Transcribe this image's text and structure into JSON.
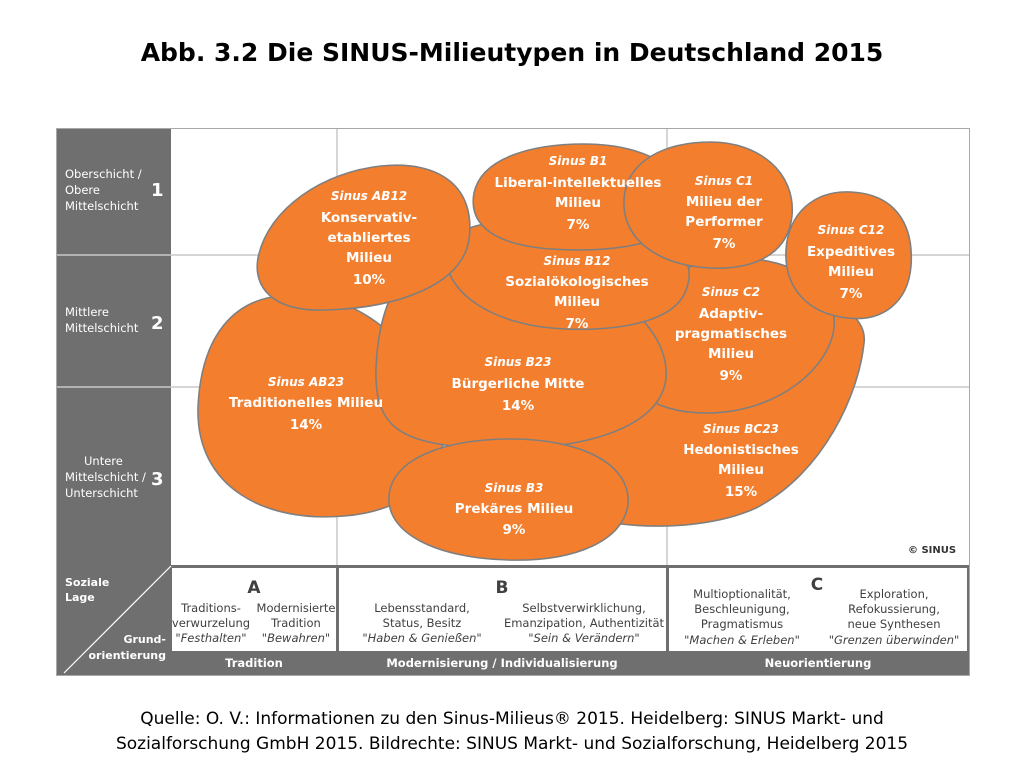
{
  "title": "Abb. 3.2  Die SINUS-Milieutypen in Deutschland 2015",
  "rows": [
    {
      "lines": [
        "Oberschicht /",
        "Obere",
        "Mittelschicht"
      ],
      "num": "1"
    },
    {
      "lines": [
        "Mittlere",
        "Mittelschicht"
      ],
      "num": "2"
    },
    {
      "lines": [
        "Untere",
        "Mittelschicht /",
        "Unterschicht"
      ],
      "num": "3"
    }
  ],
  "milieus": [
    {
      "code": "Sinus AB12",
      "name": [
        "Konservativ-",
        "etabliertes",
        "Milieu"
      ],
      "share": "10%"
    },
    {
      "code": "Sinus B1",
      "name": [
        "Liberal-intellektuelles",
        "Milieu"
      ],
      "share": "7%"
    },
    {
      "code": "Sinus C1",
      "name": [
        "Milieu der",
        "Performer"
      ],
      "share": "7%"
    },
    {
      "code": "Sinus C12",
      "name": [
        "Expeditives",
        "Milieu"
      ],
      "share": "7%"
    },
    {
      "code": "Sinus B12",
      "name": [
        "Sozialökologisches",
        "Milieu"
      ],
      "share": "7%"
    },
    {
      "code": "Sinus C2",
      "name": [
        "Adaptiv-",
        "pragmatisches",
        "Milieu"
      ],
      "share": "9%"
    },
    {
      "code": "Sinus AB23",
      "name": [
        "Traditionelles Milieu"
      ],
      "share": "14%"
    },
    {
      "code": "Sinus B23",
      "name": [
        "Bürgerliche Mitte"
      ],
      "share": "14%"
    },
    {
      "code": "Sinus BC23",
      "name": [
        "Hedonistisches",
        "Milieu"
      ],
      "share": "15%"
    },
    {
      "code": "Sinus B3",
      "name": [
        "Prekäres Milieu"
      ],
      "share": "9%"
    }
  ],
  "copyright": "© SINUS",
  "corner": {
    "top": [
      "Soziale",
      "Lage"
    ],
    "bottom": [
      "Grund-",
      "orientierung"
    ]
  },
  "columns": [
    {
      "letter": "A",
      "items": [
        {
          "lines": [
            "Traditions-",
            "verwurzelung"
          ],
          "quote": "\"Festhalten\""
        },
        {
          "lines": [
            "Modernisierte",
            "Tradition"
          ],
          "quote": "\"Bewahren\""
        }
      ]
    },
    {
      "letter": "B",
      "items": [
        {
          "lines": [
            "Lebensstandard,",
            "Status, Besitz"
          ],
          "quote": "\"Haben & Genießen\""
        },
        {
          "lines": [
            "Selbstverwirklichung,",
            "Emanzipation, Authentizität"
          ],
          "quote": "\"Sein & Verändern\""
        }
      ]
    },
    {
      "letter": "C",
      "items": [
        {
          "lines": [
            "Multioptionalität,",
            "Beschleunigung,",
            "Pragmatismus"
          ],
          "quote": "\"Machen & Erleben\""
        },
        {
          "lines": [
            "Exploration,",
            "Refokussierung,",
            "neue Synthesen"
          ],
          "quote": "\"Grenzen überwinden\""
        }
      ]
    }
  ],
  "bottom_labels": [
    "Tradition",
    "Modernisierung / Individualisierung",
    "Neuorientierung"
  ],
  "caption": [
    "Quelle: O. V.: Informationen zu den Sinus-Milieus® 2015. Heidelberg: SINUS Markt- und",
    "Sozialforschung GmbH 2015.  Bildrechte: SINUS Markt- und Sozialforschung, Heidelberg 2015"
  ],
  "colors": {
    "orange": "#f37f2e",
    "stroke": "#7f7f7f",
    "gray": "#6f6f6f",
    "grid": "#c9c9c9"
  }
}
